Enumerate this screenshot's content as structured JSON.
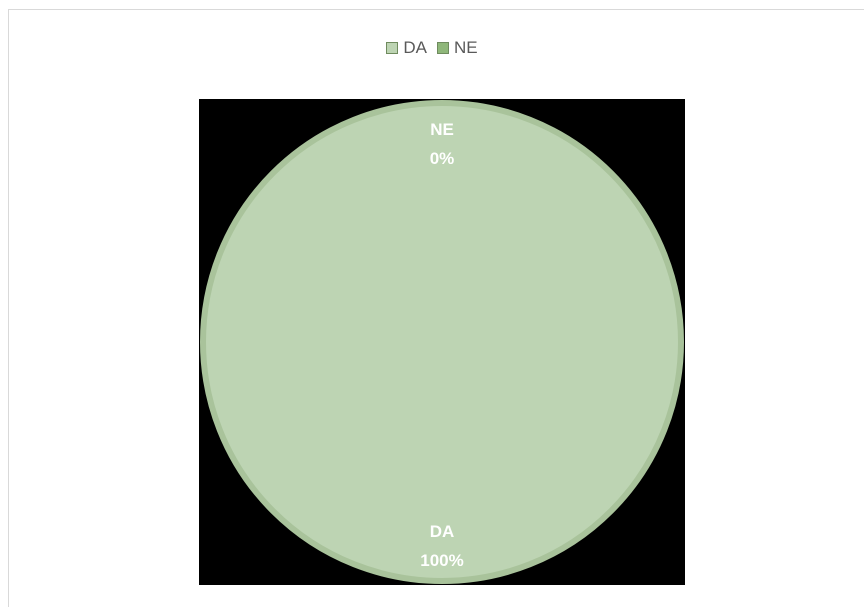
{
  "chart_data": {
    "type": "pie",
    "categories": [
      "DA",
      "NE"
    ],
    "values": [
      100,
      0
    ],
    "unit": "%",
    "legend": {
      "position": "top",
      "items": [
        {
          "label": "DA",
          "color": "#bdd4b3"
        },
        {
          "label": "NE",
          "color": "#8fb77a"
        }
      ]
    },
    "data_labels": [
      {
        "category": "NE",
        "value_text": "0%"
      },
      {
        "category": "DA",
        "value_text": "100%"
      }
    ],
    "colors": {
      "slice_fill": "#bdd4b3",
      "slice_border": "#a9c39b",
      "plot_background": "#000000"
    }
  }
}
